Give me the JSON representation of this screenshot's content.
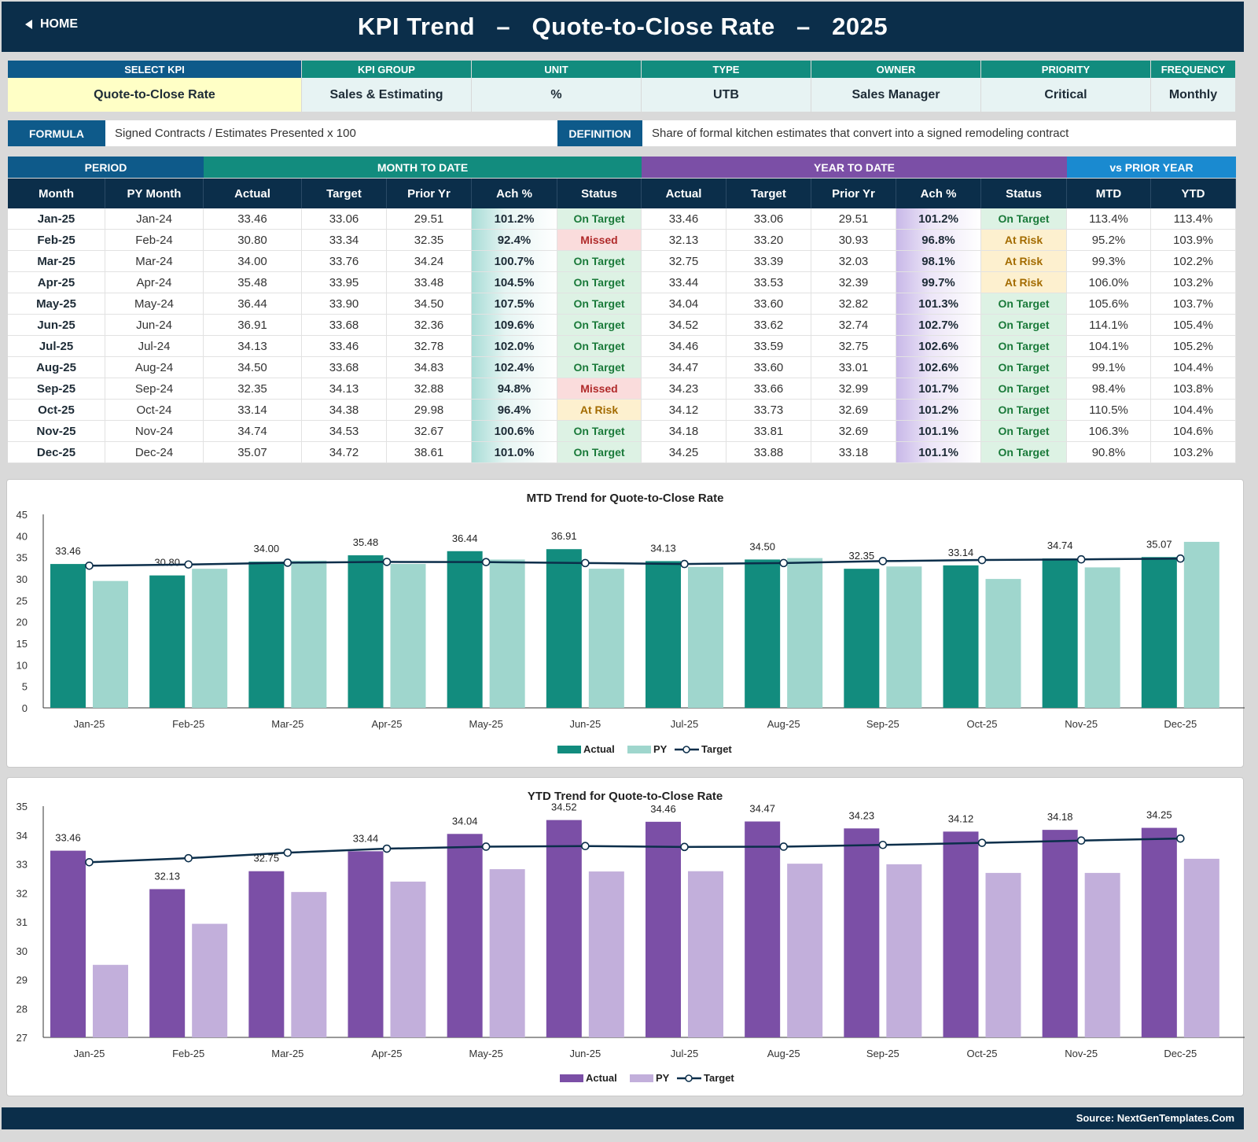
{
  "header": {
    "home_label": "HOME",
    "title": "KPI Trend   –   Quote-to-Close Rate   –   2025"
  },
  "kpi_info": {
    "headers": [
      "SELECT KPI",
      "KPI GROUP",
      "UNIT",
      "TYPE",
      "OWNER",
      "PRIORITY",
      "FREQUENCY"
    ],
    "values": [
      "Quote-to-Close Rate",
      "Sales & Estimating",
      "%",
      "UTB",
      "Sales Manager",
      "Critical",
      "Monthly"
    ]
  },
  "formula": {
    "formula_label": "FORMULA",
    "formula_text": "Signed Contracts / Estimates Presented x 100",
    "definition_label": "DEFINITION",
    "definition_text": "Share of formal kitchen estimates that convert into a signed remodeling contract"
  },
  "table": {
    "groups": {
      "period": "PERIOD",
      "mtd": "MONTH TO DATE",
      "ytd": "YEAR TO DATE",
      "py": "vs PRIOR YEAR"
    },
    "columns": [
      "Month",
      "PY Month",
      "Actual",
      "Target",
      "Prior Yr",
      "Ach %",
      "Status",
      "Actual",
      "Target",
      "Prior Yr",
      "Ach %",
      "Status",
      "MTD",
      "YTD"
    ],
    "rows": [
      [
        "Jan-25",
        "Jan-24",
        "33.46",
        "33.06",
        "29.51",
        "101.2%",
        "On Target",
        "33.46",
        "33.06",
        "29.51",
        "101.2%",
        "On Target",
        "113.4%",
        "113.4%"
      ],
      [
        "Feb-25",
        "Feb-24",
        "30.80",
        "33.34",
        "32.35",
        "92.4%",
        "Missed",
        "32.13",
        "33.20",
        "30.93",
        "96.8%",
        "At Risk",
        "95.2%",
        "103.9%"
      ],
      [
        "Mar-25",
        "Mar-24",
        "34.00",
        "33.76",
        "34.24",
        "100.7%",
        "On Target",
        "32.75",
        "33.39",
        "32.03",
        "98.1%",
        "At Risk",
        "99.3%",
        "102.2%"
      ],
      [
        "Apr-25",
        "Apr-24",
        "35.48",
        "33.95",
        "33.48",
        "104.5%",
        "On Target",
        "33.44",
        "33.53",
        "32.39",
        "99.7%",
        "At Risk",
        "106.0%",
        "103.2%"
      ],
      [
        "May-25",
        "May-24",
        "36.44",
        "33.90",
        "34.50",
        "107.5%",
        "On Target",
        "34.04",
        "33.60",
        "32.82",
        "101.3%",
        "On Target",
        "105.6%",
        "103.7%"
      ],
      [
        "Jun-25",
        "Jun-24",
        "36.91",
        "33.68",
        "32.36",
        "109.6%",
        "On Target",
        "34.52",
        "33.62",
        "32.74",
        "102.7%",
        "On Target",
        "114.1%",
        "105.4%"
      ],
      [
        "Jul-25",
        "Jul-24",
        "34.13",
        "33.46",
        "32.78",
        "102.0%",
        "On Target",
        "34.46",
        "33.59",
        "32.75",
        "102.6%",
        "On Target",
        "104.1%",
        "105.2%"
      ],
      [
        "Aug-25",
        "Aug-24",
        "34.50",
        "33.68",
        "34.83",
        "102.4%",
        "On Target",
        "34.47",
        "33.60",
        "33.01",
        "102.6%",
        "On Target",
        "99.1%",
        "104.4%"
      ],
      [
        "Sep-25",
        "Sep-24",
        "32.35",
        "34.13",
        "32.88",
        "94.8%",
        "Missed",
        "34.23",
        "33.66",
        "32.99",
        "101.7%",
        "On Target",
        "98.4%",
        "103.8%"
      ],
      [
        "Oct-25",
        "Oct-24",
        "33.14",
        "34.38",
        "29.98",
        "96.4%",
        "At Risk",
        "34.12",
        "33.73",
        "32.69",
        "101.2%",
        "On Target",
        "110.5%",
        "104.4%"
      ],
      [
        "Nov-25",
        "Nov-24",
        "34.74",
        "34.53",
        "32.67",
        "100.6%",
        "On Target",
        "34.18",
        "33.81",
        "32.69",
        "101.1%",
        "On Target",
        "106.3%",
        "104.6%"
      ],
      [
        "Dec-25",
        "Dec-24",
        "35.07",
        "34.72",
        "38.61",
        "101.0%",
        "On Target",
        "34.25",
        "33.88",
        "33.18",
        "101.1%",
        "On Target",
        "90.8%",
        "103.2%"
      ]
    ]
  },
  "chart_data": [
    {
      "type": "bar",
      "title": "MTD Trend for Quote-to-Close Rate",
      "categories": [
        "Jan-25",
        "Feb-25",
        "Mar-25",
        "Apr-25",
        "May-25",
        "Jun-25",
        "Jul-25",
        "Aug-25",
        "Sep-25",
        "Oct-25",
        "Nov-25",
        "Dec-25"
      ],
      "series": [
        {
          "name": "Actual",
          "kind": "bar",
          "color": "#128c7e",
          "values": [
            33.46,
            30.8,
            34.0,
            35.48,
            36.44,
            36.91,
            34.13,
            34.5,
            32.35,
            33.14,
            34.74,
            35.07
          ]
        },
        {
          "name": "PY",
          "kind": "bar",
          "color": "#9fd6cd",
          "values": [
            29.51,
            32.35,
            34.24,
            33.48,
            34.5,
            32.36,
            32.78,
            34.83,
            32.88,
            29.98,
            32.67,
            38.61
          ]
        },
        {
          "name": "Target",
          "kind": "line",
          "color": "#0b2e4a",
          "values": [
            33.06,
            33.34,
            33.76,
            33.95,
            33.9,
            33.68,
            33.46,
            33.68,
            34.13,
            34.38,
            34.53,
            34.72
          ]
        }
      ],
      "data_labels": [
        "33.46",
        "30.80",
        "34.00",
        "35.48",
        "36.44",
        "36.91",
        "34.13",
        "34.50",
        "32.35",
        "33.14",
        "34.74",
        "35.07"
      ],
      "ylim": [
        0,
        45
      ],
      "yticks": [
        "0",
        "5",
        "10",
        "15",
        "20",
        "25",
        "30",
        "35",
        "40",
        "45"
      ],
      "legend": "bottom",
      "grid": false
    },
    {
      "type": "bar",
      "title": "YTD Trend for Quote-to-Close Rate",
      "categories": [
        "Jan-25",
        "Feb-25",
        "Mar-25",
        "Apr-25",
        "May-25",
        "Jun-25",
        "Jul-25",
        "Aug-25",
        "Sep-25",
        "Oct-25",
        "Nov-25",
        "Dec-25"
      ],
      "series": [
        {
          "name": "Actual",
          "kind": "bar",
          "color": "#7b4fa6",
          "values": [
            33.46,
            32.13,
            32.75,
            33.44,
            34.04,
            34.52,
            34.46,
            34.47,
            34.23,
            34.12,
            34.18,
            34.25
          ]
        },
        {
          "name": "PY",
          "kind": "bar",
          "color": "#c2afdb",
          "values": [
            29.51,
            30.93,
            32.03,
            32.39,
            32.82,
            32.74,
            32.75,
            33.01,
            32.99,
            32.69,
            32.69,
            33.18
          ]
        },
        {
          "name": "Target",
          "kind": "line",
          "color": "#0b2e4a",
          "values": [
            33.06,
            33.2,
            33.39,
            33.53,
            33.6,
            33.62,
            33.59,
            33.6,
            33.66,
            33.73,
            33.81,
            33.88
          ]
        }
      ],
      "data_labels": [
        "33.46",
        "32.13",
        "32.75",
        "33.44",
        "34.04",
        "34.52",
        "34.46",
        "34.47",
        "34.23",
        "34.12",
        "34.18",
        "34.25"
      ],
      "ylim": [
        27,
        35
      ],
      "yticks": [
        "27",
        "28",
        "29",
        "30",
        "31",
        "32",
        "33",
        "34",
        "35"
      ],
      "legend": "bottom",
      "grid": false
    }
  ],
  "footer": {
    "source": "Source: NextGenTemplates.Com"
  },
  "colors": {
    "navy": "#0b2e4a",
    "teal": "#128c7e",
    "blue": "#0e5a8a",
    "purple": "#7b4fa6",
    "lightblue": "#1a8ad0"
  }
}
